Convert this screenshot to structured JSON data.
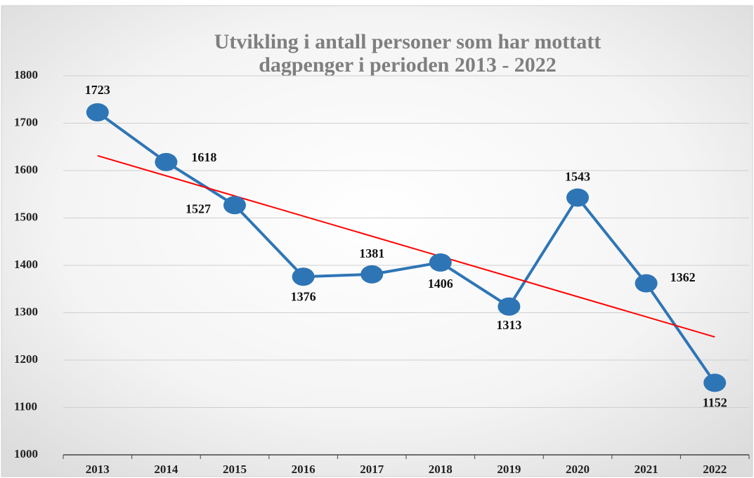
{
  "chart_data": {
    "type": "line",
    "title": [
      "Utvikling i antall personer som har mottatt",
      "dagpenger i perioden 2013 - 2022"
    ],
    "categories": [
      "2013",
      "2014",
      "2015",
      "2016",
      "2017",
      "2018",
      "2019",
      "2020",
      "2021",
      "2022"
    ],
    "series": [
      {
        "color": "#2e75b6",
        "values": [
          1723,
          1618,
          1527,
          1376,
          1381,
          1406,
          1313,
          1543,
          1362,
          1152
        ]
      }
    ],
    "trendline": {
      "type": "linear",
      "color": "#ff0000"
    },
    "ylim": [
      1000,
      1800
    ],
    "yticks": [
      1000,
      1100,
      1200,
      1300,
      1400,
      1500,
      1600,
      1700,
      1800
    ],
    "grid": true
  }
}
